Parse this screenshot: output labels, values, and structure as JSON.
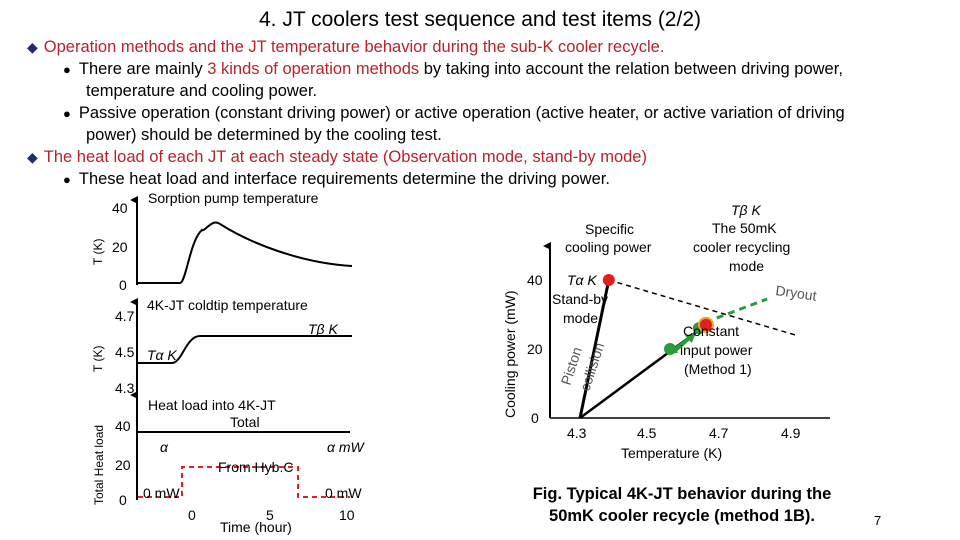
{
  "title": "4. JT coolers test sequence and test items (2/2)",
  "bullets": {
    "b1": "Operation methods and the JT temperature behavior during the sub-K cooler recycle.",
    "b1a_pre": "There are mainly ",
    "b1a_red": "3 kinds of operation methods",
    "b1a_post": " by taking into account the relation between driving power,",
    "b1a_cont": "temperature and cooling power.",
    "b1b": "Passive operation (constant driving power) or active operation (active heater, or active variation of driving",
    "b1b_cont": "power) should be determined by the cooling test.",
    "b2": "The heat load of each JT at each steady state (Observation mode, stand-by mode)",
    "b2a": "These heat load and interface requirements determine the driving power."
  },
  "left_chart": {
    "top": {
      "title": "Sorption pump temperature",
      "ylabel": "T (K)",
      "yticks": [
        "40",
        "20",
        "0"
      ]
    },
    "mid": {
      "title": "4K-JT coldtip temperature",
      "ylabel": "T (K)",
      "yticks": [
        "4.7",
        "4.5",
        "4.3"
      ],
      "ann_beta": "Tβ K",
      "ann_alpha": "Tα K"
    },
    "bot": {
      "title_1": "Heat load into 4K-JT",
      "title_2": "Total",
      "ylabel": "Total Heat load",
      "yticks": [
        "40",
        "20",
        "0"
      ],
      "ann_alpha": "α",
      "ann_alpha_mw": "α mW",
      "ann_from": "From Hyb.C",
      "ann_0mw_left": "0 mW",
      "ann_0mw_right": "0 mW"
    },
    "xticks": [
      "0",
      "5",
      "10"
    ],
    "xlabel": "Time (hour)"
  },
  "chart_data": {
    "type": "line",
    "title": "",
    "xlabel": "Temperature (K)",
    "ylabel": "Cooling power (mW)",
    "xticks": [
      "4.3",
      "4.5",
      "4.7",
      "4.9"
    ],
    "yticks": [
      "40",
      "20",
      "0"
    ],
    "xlim": [
      4.3,
      4.9
    ],
    "ylim": [
      0,
      40
    ],
    "series": [
      {
        "x": [
          4.3,
          4.38
        ],
        "y": [
          0,
          40
        ]
      },
      {
        "x": [
          4.38,
          4.9
        ],
        "y": [
          40,
          24
        ]
      }
    ],
    "points": [
      {
        "x": 4.38,
        "y": 40,
        "color": "#e0201e"
      },
      {
        "x": 4.55,
        "y": 20,
        "color": "#2a9a3a"
      },
      {
        "x": 4.63,
        "y": 26,
        "color": "#2a9a3a"
      },
      {
        "x": 4.65,
        "y": 27,
        "color": "#e0201e"
      }
    ],
    "annotations": {
      "specific_1": "Specific",
      "specific_2": "cooling power",
      "tb_1": "Tβ K",
      "tb_2": "The 50mK",
      "tb_3": "cooler recycling",
      "tb_4": "mode",
      "ta_1": "Tα K",
      "ta_2": "Stand-by",
      "ta_3": "mode",
      "dryout": "Dryout",
      "piston_1": "Piston",
      "piston_2": "collision",
      "const_1": "Constant",
      "const_2": "input power",
      "const_3": "(Method 1)"
    }
  },
  "caption_1": "Fig. Typical 4K-JT behavior during the",
  "caption_2": "50mK cooler recycle (method 1B).",
  "page_number": "7",
  "colors": {
    "diamond": "#1f2a7a",
    "highlight": "#b8222b",
    "red_point": "#e0201e",
    "green": "#2a9a3a",
    "orange": "#f2a020"
  }
}
